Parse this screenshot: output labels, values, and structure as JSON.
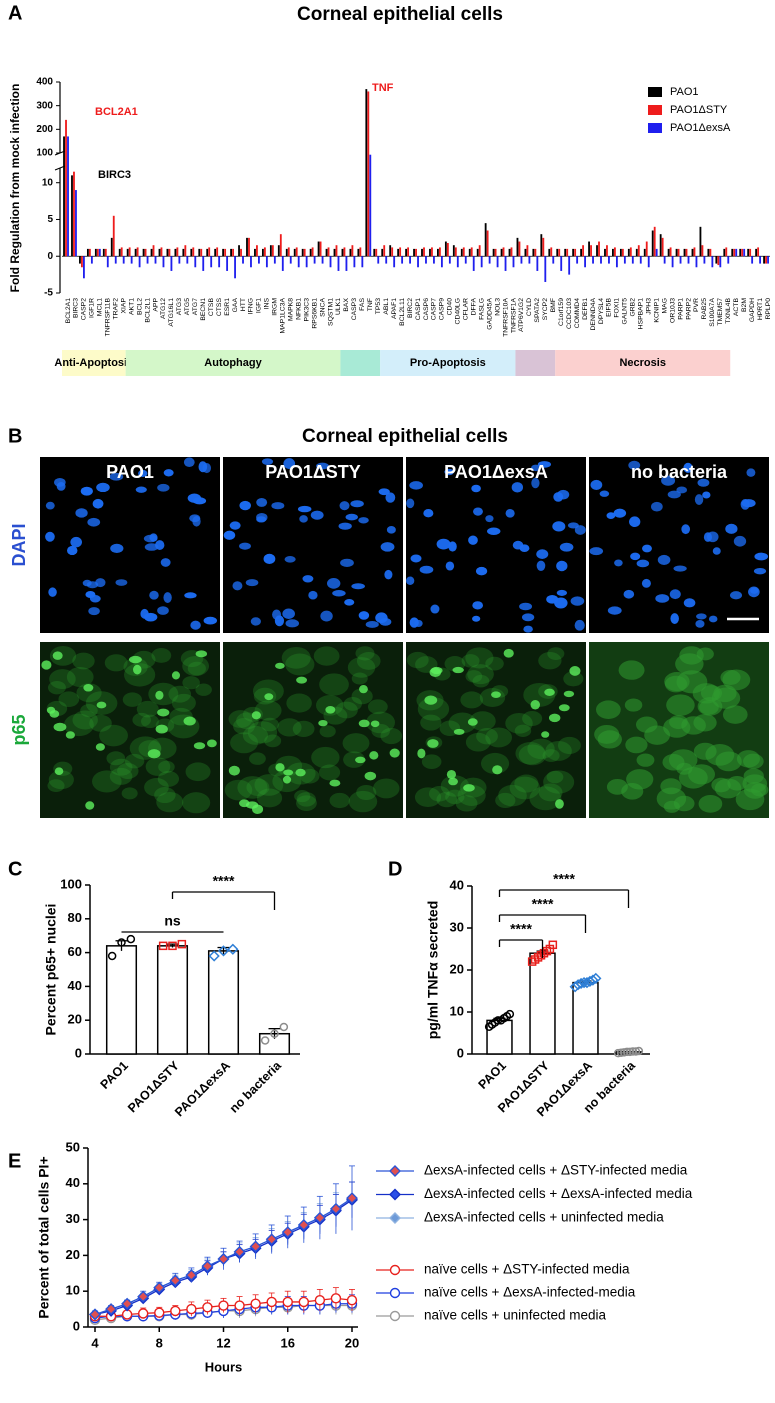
{
  "chart_data": [
    {
      "panel": "A",
      "type": "grouped-bar",
      "title": "Corneal epithelial cells",
      "y_label": "Fold Regulation from mock infection",
      "ylim": [
        -5,
        400
      ],
      "axis_break": [
        12,
        100
      ],
      "yticks": [
        -5,
        0,
        5,
        10,
        100,
        200,
        300,
        400
      ],
      "legend": "top-right",
      "categories": [
        "BCL2A1",
        "BIRC3",
        "CASP2",
        "IGF1R",
        "MCL1",
        "TNFRSF11B",
        "TRAF2",
        "XIAP",
        "AKT1",
        "BCL2",
        "BCL2L1",
        "APP",
        "ATG12",
        "ATG16L1",
        "ATG3",
        "ATG5",
        "ATG7",
        "BECN1",
        "CTSB",
        "CTSS",
        "ESR1",
        "GAA",
        "HTT",
        "IFNG",
        "IGF1",
        "INS",
        "IRGM",
        "MAP1LC3A",
        "MAPK8",
        "NFKB1",
        "PIK3C3",
        "RPS6KB1",
        "SNCA",
        "SQSTM1",
        "ULK1",
        "BAX",
        "CASP3",
        "FAS",
        "TNF",
        "TP53",
        "ABL1",
        "APAF1",
        "BCL2L11",
        "BIRC2",
        "CASP1",
        "CASP6",
        "CASP7",
        "CASP9",
        "CD40",
        "CD40LG",
        "CFLAR",
        "DFFA",
        "FASLG",
        "GADD45A",
        "NOL3",
        "TNFRSF10A",
        "TNFRSF1A",
        "ATP6V1G2",
        "CYLD",
        "SPATA2",
        "SYCP2",
        "BMF",
        "C1orf159",
        "CCDC103",
        "COMMD4",
        "DEFB1",
        "DENND4A",
        "DPYSL4",
        "EIF5B",
        "FOXI1",
        "GALNT5",
        "GRB2",
        "HSPBAP1",
        "JPH3",
        "KCNIP1",
        "MAG",
        "OR10J3",
        "PARP1",
        "PARP2",
        "PVR",
        "RAB25",
        "S100A7A",
        "TMEM57",
        "TXNL4B",
        "ACTB",
        "B2M",
        "GAPDH",
        "HPRT1",
        "RPLP0"
      ],
      "groups": [
        {
          "label": "Anti-Apoptosis",
          "size": 8,
          "color": "#fdfbc9"
        },
        {
          "label": "Autophagy",
          "size": 27,
          "color": "#d4f7c9"
        },
        {
          "label": null,
          "size": 5,
          "color": "#a8ead6"
        },
        {
          "label": "Pro-Apoptosis",
          "size": 17,
          "color": "#d3eefa"
        },
        {
          "label": null,
          "size": 5,
          "color": "#d9c3d6"
        },
        {
          "label": "Necrosis",
          "size": 22,
          "color": "#fbd0cf"
        }
      ],
      "series": [
        {
          "name": "PAO1",
          "color": "#000000",
          "values": [
            170,
            11,
            -1,
            1,
            1,
            1,
            2.5,
            1,
            1,
            1,
            1,
            1,
            1,
            1,
            1,
            1,
            1,
            1,
            1,
            1,
            1,
            1,
            1.5,
            2.5,
            1,
            1,
            1.5,
            1.5,
            1,
            1,
            1,
            1,
            2,
            1,
            1,
            1,
            1,
            1,
            370,
            1,
            1,
            1.5,
            1,
            1,
            1,
            1,
            1,
            1,
            2,
            1.5,
            1,
            1,
            1,
            4.5,
            1,
            1,
            1,
            2.5,
            1,
            1,
            3,
            1,
            1,
            1,
            1,
            1,
            2,
            1.5,
            1,
            1,
            1,
            1,
            1,
            1,
            3.5,
            3,
            1,
            1,
            1,
            1,
            4,
            1,
            -1,
            1,
            1,
            1,
            1,
            1,
            -1
          ]
        },
        {
          "name": "PAO1ΔSTY",
          "color": "#ee1c1c",
          "values": [
            240,
            11.5,
            -1.5,
            1,
            1,
            1,
            5.5,
            1.2,
            1.2,
            1.2,
            1,
            1.5,
            1.2,
            1,
            1.2,
            1.5,
            1.2,
            1,
            1.2,
            1.2,
            1,
            1,
            1,
            2.5,
            1.5,
            1.2,
            1.5,
            3,
            1.2,
            1.2,
            1,
            1.2,
            2,
            1.2,
            1.5,
            1.2,
            1.5,
            1.2,
            360,
            1,
            1.5,
            1.2,
            1.2,
            1.2,
            1,
            1.2,
            1.2,
            1.2,
            1.8,
            1.2,
            1.2,
            1.2,
            1.5,
            3.5,
            1,
            1.2,
            1.2,
            2,
            1.5,
            1,
            2.5,
            1.2,
            1,
            1,
            1,
            1.5,
            1.5,
            2,
            1.5,
            1.2,
            1,
            1.2,
            1.5,
            2,
            4,
            2.5,
            1.2,
            1,
            1,
            1.2,
            1.5,
            1,
            -1.2,
            1.2,
            1,
            1,
            1,
            1.2,
            -1
          ]
        },
        {
          "name": "PAO1ΔexsA",
          "color": "#1f1fee",
          "values": [
            170,
            9,
            -3,
            -1,
            1,
            -1.5,
            -1,
            -1,
            -1,
            -1.5,
            -1,
            -1,
            -1.5,
            -2,
            -1,
            -1,
            -1.5,
            -2,
            -1.5,
            -1.5,
            -2,
            -3,
            -1,
            -1.5,
            -1,
            -1.5,
            -1,
            -2,
            -1,
            -1.5,
            -1.5,
            -1,
            -1,
            -1.5,
            -2,
            -2,
            -1.5,
            -1.5,
            90,
            -1,
            -1,
            -1.5,
            -1,
            -1,
            -1.5,
            -1,
            -1,
            -1.5,
            -1,
            -1.5,
            -1,
            -2,
            -1.5,
            -1,
            -1.5,
            -2,
            -1.5,
            -1,
            -1,
            -2,
            -3.5,
            -1,
            -2,
            -2.5,
            -1,
            -1.5,
            -1,
            -1,
            -1,
            -1.5,
            -1,
            -1,
            -1,
            -1.5,
            1,
            -1,
            -1.5,
            -1,
            -1,
            -1.5,
            -1,
            -1.5,
            -1.5,
            -1,
            1,
            1,
            -1,
            -1,
            -1
          ]
        }
      ],
      "annotations": [
        {
          "text": "BCL2A1",
          "color": "#ee1c1c"
        },
        {
          "text": "BIRC3",
          "color": "#000000"
        },
        {
          "text": "TNF",
          "color": "#ee1c1c"
        }
      ]
    },
    {
      "panel": "C",
      "type": "bar-dots",
      "y_label": "Percent p65+ nuclei",
      "ylim": [
        0,
        100
      ],
      "yticks": [
        0,
        20,
        40,
        60,
        80,
        100
      ],
      "categories": [
        "PAO1",
        "PAO1ΔSTY",
        "PAO1ΔexsA",
        "no bacteria"
      ],
      "values": [
        64,
        64,
        61,
        12
      ],
      "errors": [
        3,
        1,
        2,
        3
      ],
      "points": [
        [
          58,
          66,
          68
        ],
        [
          64,
          64,
          65
        ],
        [
          58,
          61,
          62
        ],
        [
          8,
          12,
          16
        ]
      ],
      "colors": [
        "#000000",
        "#e8201c",
        "#2f7fd6",
        "#8c8c8c"
      ],
      "markers": [
        "circle",
        "square",
        "diamond",
        "circle"
      ],
      "brackets": [
        {
          "label": "ns",
          "from": 0,
          "to": 2
        },
        {
          "label": "****",
          "from": 1,
          "to": 3
        }
      ]
    },
    {
      "panel": "D",
      "type": "bar-dots",
      "y_label": "pg/ml TNFα secreted",
      "ylim": [
        0,
        40
      ],
      "yticks": [
        0,
        10,
        20,
        30,
        40
      ],
      "categories": [
        "PAO1",
        "PAO1ΔSTY",
        "PAO1ΔexsA",
        "no bacteria"
      ],
      "values": [
        8,
        24,
        17,
        0.5
      ],
      "errors": [
        0.5,
        0.5,
        0.4,
        0.1
      ],
      "points": [
        [
          6.5,
          7,
          7.5,
          8,
          8,
          8.5,
          9,
          9.5
        ],
        [
          22,
          22.5,
          23,
          23.5,
          24,
          24.5,
          25,
          26
        ],
        [
          16,
          16.5,
          16.8,
          17,
          17,
          17.3,
          17.6,
          18
        ],
        [
          0.2,
          0.3,
          0.4,
          0.5,
          0.5,
          0.6,
          0.6,
          0.7
        ]
      ],
      "colors": [
        "#000000",
        "#e8201c",
        "#2f7fd6",
        "#8c8c8c"
      ],
      "markers": [
        "circle",
        "square",
        "diamond",
        "circle"
      ],
      "brackets": [
        {
          "label": "****",
          "from": 0,
          "to": 3
        },
        {
          "label": "****",
          "from": 0,
          "to": 2
        },
        {
          "label": "****",
          "from": 0,
          "to": 1
        }
      ]
    },
    {
      "panel": "E",
      "type": "line",
      "x_label": "Hours",
      "y_label": "Percent of total cells PI+",
      "x": [
        4,
        5,
        6,
        7,
        8,
        9,
        10,
        11,
        12,
        13,
        14,
        15,
        16,
        17,
        18,
        19,
        20
      ],
      "xlim": [
        4,
        20
      ],
      "xticks": [
        4,
        8,
        12,
        16,
        20
      ],
      "ylim": [
        0,
        50
      ],
      "yticks": [
        0,
        10,
        20,
        30,
        40,
        50
      ],
      "series": [
        {
          "name": "ΔexsA-infected cells + ΔSTY-infected media",
          "color": "#2b55d6",
          "fill": "#e05050",
          "marker": "diamond",
          "values": [
            3.5,
            5,
            6.5,
            8.5,
            11,
            13,
            14.5,
            17,
            19,
            21,
            22.5,
            24.5,
            26.5,
            28.5,
            30.5,
            33,
            36
          ],
          "errors": [
            1,
            1,
            1,
            1.5,
            1.5,
            2,
            2,
            2.5,
            3,
            3,
            3.5,
            4,
            4.5,
            5,
            6,
            7,
            9
          ]
        },
        {
          "name": "ΔexsA-infected cells + ΔexsA-infected media",
          "color": "#1530c8",
          "fill": "#2b4fe8",
          "marker": "diamond",
          "values": [
            3.5,
            4.5,
            6,
            8,
            10.5,
            12.5,
            14,
            16.5,
            19,
            20.5,
            22,
            24,
            26,
            28,
            30,
            32.5,
            35.5
          ],
          "errors": [
            0.8,
            0.8,
            1,
            1,
            1.2,
            1.5,
            1.5,
            2,
            2,
            2.5,
            2.5,
            3,
            3,
            3.5,
            4,
            4.5,
            5
          ]
        },
        {
          "name": "ΔexsA-infected cells + uninfected media",
          "color": "#8fb2e0",
          "fill": "#6d9ad8",
          "marker": "diamond",
          "values": [
            3.5,
            5,
            6.5,
            8.5,
            11,
            13,
            14.5,
            17,
            19,
            21,
            22.5,
            24.5,
            26.5,
            28.5,
            30.5,
            33,
            35.5
          ],
          "errors": [
            0.8,
            0.8,
            1,
            1,
            1.2,
            1.5,
            1.5,
            2,
            2,
            2.5,
            2.5,
            3,
            3,
            3.5,
            4,
            4.5,
            5
          ]
        },
        {
          "name": "naïve cells + ΔSTY-infected media",
          "color": "#e8201c",
          "fill": "none",
          "marker": "circle",
          "values": [
            3,
            3,
            3.5,
            3.8,
            4,
            4.5,
            5,
            5.5,
            6,
            6,
            6.5,
            7,
            7,
            7,
            7.5,
            8,
            7.5
          ],
          "errors": [
            1,
            1,
            1,
            1.5,
            1.5,
            1.5,
            2,
            2,
            2,
            2.5,
            2.5,
            2.5,
            3,
            3,
            3,
            3,
            3
          ]
        },
        {
          "name": "naïve cells + ΔexsA-infected-media",
          "color": "#1f3fe0",
          "fill": "none",
          "marker": "circle",
          "values": [
            2.5,
            3,
            3,
            3,
            3.2,
            3.5,
            3.8,
            4,
            4.5,
            5,
            5.5,
            5.5,
            6,
            6,
            6,
            6.5,
            6.5
          ],
          "errors": [
            1,
            1,
            1,
            1,
            1,
            1.5,
            1.5,
            1.5,
            2,
            2,
            2,
            2,
            2.5,
            2.5,
            2.5,
            2.5,
            2.5
          ]
        },
        {
          "name": "naïve cells + uninfected media",
          "color": "#9a9a9a",
          "fill": "none",
          "marker": "circle",
          "values": [
            2,
            2.5,
            3,
            3,
            3,
            3.5,
            3.5,
            4,
            4.5,
            4.5,
            5,
            5.5,
            5.5,
            6,
            6,
            6,
            6
          ],
          "errors": [
            1,
            1,
            1,
            1,
            1,
            1,
            1.5,
            1.5,
            1.5,
            2,
            2,
            2,
            2,
            2,
            2.5,
            2.5,
            2.5
          ]
        }
      ]
    }
  ],
  "image_panel": {
    "panel": "B",
    "title": "Corneal epithelial cells",
    "columns": [
      "PAO1",
      "PAO1ΔSTY",
      "PAO1ΔexsA",
      "no bacteria"
    ],
    "rows": [
      "DAPI",
      "p65"
    ]
  }
}
